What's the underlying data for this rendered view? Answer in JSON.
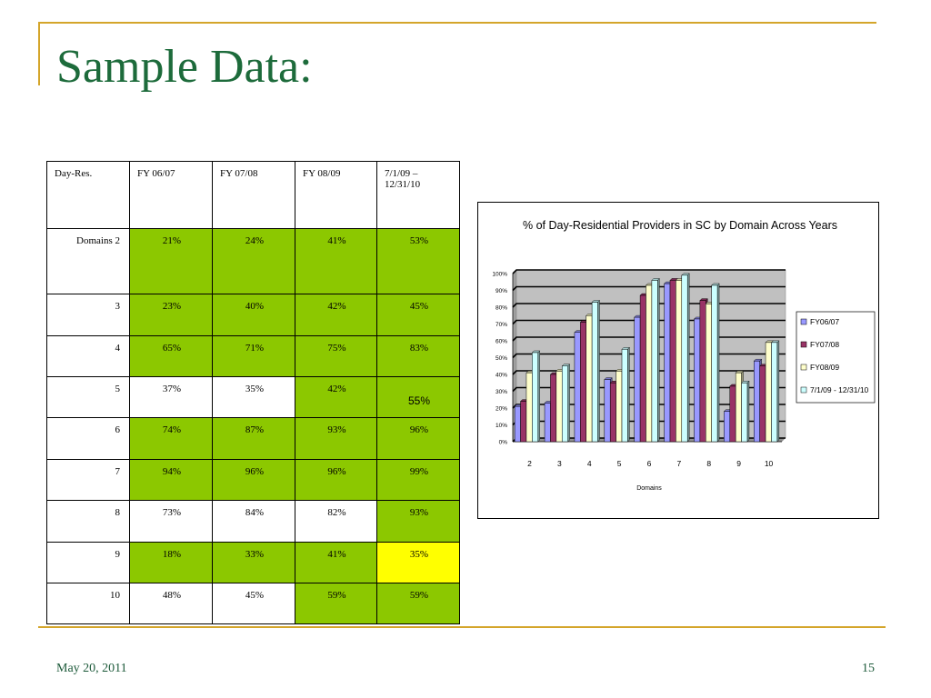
{
  "slide": {
    "title": "Sample Data:",
    "date": "May 20, 2011",
    "page": "15"
  },
  "table": {
    "headers": [
      "Day-Res.",
      "FY 06/07",
      "FY 07/08",
      "FY 08/09",
      "7/1/09 –",
      "12/31/10"
    ],
    "rows": [
      {
        "label": "Domains 2",
        "cells": [
          "21%",
          "24%",
          "41%",
          "53%"
        ],
        "fills": [
          "green",
          "green",
          "green",
          "green"
        ]
      },
      {
        "label": "3",
        "cells": [
          "23%",
          "40%",
          "42%",
          "45%"
        ],
        "fills": [
          "green",
          "green",
          "green",
          "green"
        ]
      },
      {
        "label": "4",
        "cells": [
          "65%",
          "71%",
          "75%",
          "83%"
        ],
        "fills": [
          "green",
          "green",
          "green",
          "green"
        ]
      },
      {
        "label": "5",
        "cells": [
          "37%",
          "35%",
          "42%",
          "55%"
        ],
        "fills": [
          "white",
          "white",
          "green",
          "green"
        ]
      },
      {
        "label": "6",
        "cells": [
          "74%",
          "87%",
          "93%",
          "96%"
        ],
        "fills": [
          "green",
          "green",
          "green",
          "green"
        ]
      },
      {
        "label": "7",
        "cells": [
          "94%",
          "96%",
          "96%",
          "99%"
        ],
        "fills": [
          "green",
          "green",
          "green",
          "green"
        ]
      },
      {
        "label": "8",
        "cells": [
          "73%",
          "84%",
          "82%",
          "93%"
        ],
        "fills": [
          "white",
          "white",
          "white",
          "green"
        ]
      },
      {
        "label": "9",
        "cells": [
          "18%",
          "33%",
          "41%",
          "35%"
        ],
        "fills": [
          "green",
          "green",
          "green",
          "yellow"
        ]
      },
      {
        "label": "10",
        "cells": [
          "48%",
          "45%",
          "59%",
          "59%"
        ],
        "fills": [
          "white",
          "white",
          "green",
          "green"
        ]
      }
    ],
    "colors": {
      "green": "#8cc800",
      "yellow": "#ffff00",
      "white": "#ffffff"
    }
  },
  "chart_data": {
    "type": "bar",
    "title": "% of Day-Residential Providers in SC by Domain Across Years",
    "xlabel": "Domains",
    "ylabel": "",
    "categories": [
      "2",
      "3",
      "4",
      "5",
      "6",
      "7",
      "8",
      "9",
      "10"
    ],
    "yticks": [
      "0%",
      "10%",
      "20%",
      "30%",
      "40%",
      "50%",
      "60%",
      "70%",
      "80%",
      "90%",
      "100%"
    ],
    "ylim": [
      0,
      100
    ],
    "grid": true,
    "legend_position": "right",
    "series": [
      {
        "name": "FY06/07",
        "color": "#9999ff",
        "values": [
          21,
          23,
          65,
          37,
          74,
          94,
          73,
          18,
          48
        ]
      },
      {
        "name": "FY07/08",
        "color": "#993366",
        "values": [
          24,
          40,
          71,
          35,
          87,
          96,
          84,
          33,
          45
        ]
      },
      {
        "name": "FY08/09",
        "color": "#ffffcc",
        "values": [
          41,
          42,
          75,
          42,
          93,
          96,
          82,
          41,
          59
        ]
      },
      {
        "name": "7/1/09 - 12/31/10",
        "color": "#ccffff",
        "values": [
          53,
          45,
          83,
          55,
          96,
          99,
          93,
          35,
          59
        ]
      }
    ],
    "plot_background": "#c0c0c0"
  }
}
